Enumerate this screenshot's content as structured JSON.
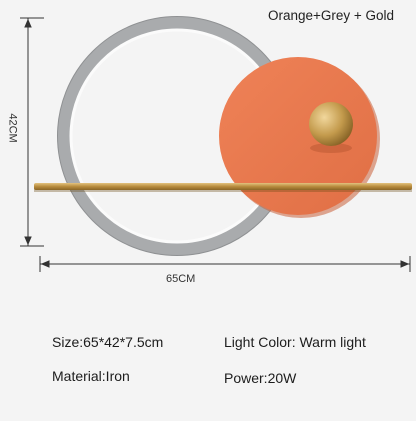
{
  "color_option": "Orange+Grey + Gold",
  "dimensions": {
    "height_label": "42CM",
    "width_label": "65CM"
  },
  "specs": {
    "size": "Size:65*42*7.5cm",
    "light_color": "Light Color: Warm light",
    "material": "Material:Iron",
    "power": "Power:20W"
  },
  "colors": {
    "ring_grey": "#a9abad",
    "ring_inner_white": "#fbfbfb",
    "disc_orange": "#ea7a50",
    "gold": "#c39a4c"
  },
  "icons": {
    "lamp": "ring-disc-wall-lamp-icon"
  }
}
